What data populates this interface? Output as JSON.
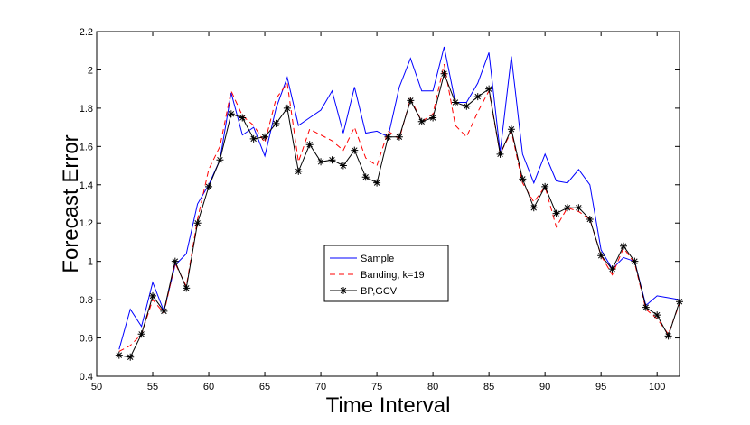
{
  "chart_data": {
    "type": "line",
    "title": "",
    "xlabel": "Time Interval",
    "ylabel": "Forecast Error",
    "xlim": [
      50,
      102
    ],
    "ylim": [
      0.4,
      2.2
    ],
    "xticks": [
      "50",
      "55",
      "60",
      "65",
      "70",
      "75",
      "80",
      "85",
      "90",
      "95",
      "100"
    ],
    "yticks": [
      "0.4",
      "0.6",
      "0.8",
      "1",
      "1.2",
      "1.4",
      "1.6",
      "1.8",
      "2",
      "2.2"
    ],
    "grid": false,
    "legend_position": "center",
    "x": [
      52,
      53,
      54,
      55,
      56,
      57,
      58,
      59,
      60,
      61,
      62,
      63,
      64,
      65,
      66,
      67,
      68,
      69,
      70,
      71,
      72,
      73,
      74,
      75,
      76,
      77,
      78,
      79,
      80,
      81,
      82,
      83,
      84,
      85,
      86,
      87,
      88,
      89,
      90,
      91,
      92,
      93,
      94,
      95,
      96,
      97,
      98,
      99,
      100,
      101,
      102
    ],
    "series": [
      {
        "name": "Sample",
        "color": "#0000ff",
        "style": "solid",
        "marker": "none",
        "values": [
          0.54,
          0.75,
          0.66,
          0.89,
          0.74,
          0.98,
          1.04,
          1.3,
          1.4,
          1.53,
          1.88,
          1.66,
          1.7,
          1.55,
          1.8,
          1.96,
          1.71,
          1.75,
          1.79,
          1.89,
          1.67,
          1.91,
          1.67,
          1.68,
          1.65,
          1.91,
          2.06,
          1.89,
          1.89,
          2.12,
          1.83,
          1.83,
          1.93,
          2.09,
          1.57,
          2.07,
          1.56,
          1.41,
          1.56,
          1.42,
          1.41,
          1.48,
          1.4,
          1.06,
          0.96,
          1.02,
          1.0,
          0.77,
          0.82,
          0.81,
          0.8
        ]
      },
      {
        "name": "Banding, k=19",
        "color": "#ff0000",
        "style": "dashed",
        "marker": "none",
        "values": [
          0.53,
          0.56,
          0.62,
          0.8,
          0.73,
          0.99,
          0.87,
          1.22,
          1.48,
          1.6,
          1.89,
          1.76,
          1.71,
          1.62,
          1.85,
          1.93,
          1.52,
          1.69,
          1.66,
          1.63,
          1.58,
          1.7,
          1.54,
          1.5,
          1.68,
          1.64,
          1.85,
          1.73,
          1.77,
          2.03,
          1.71,
          1.65,
          1.78,
          1.89,
          1.56,
          1.68,
          1.41,
          1.31,
          1.39,
          1.18,
          1.28,
          1.26,
          1.22,
          1.03,
          0.93,
          1.07,
          0.99,
          0.75,
          0.7,
          0.62,
          0.78
        ]
      },
      {
        "name": "BP,GCV",
        "color": "#000000",
        "style": "solid",
        "marker": "asterisk",
        "values": [
          0.51,
          0.5,
          0.62,
          0.82,
          0.74,
          1.0,
          0.86,
          1.2,
          1.39,
          1.53,
          1.77,
          1.75,
          1.64,
          1.65,
          1.72,
          1.8,
          1.47,
          1.61,
          1.52,
          1.53,
          1.5,
          1.58,
          1.44,
          1.41,
          1.65,
          1.65,
          1.84,
          1.73,
          1.75,
          1.98,
          1.83,
          1.81,
          1.86,
          1.9,
          1.56,
          1.69,
          1.43,
          1.28,
          1.39,
          1.25,
          1.28,
          1.28,
          1.22,
          1.03,
          0.96,
          1.08,
          1.0,
          0.76,
          0.72,
          0.61,
          0.79
        ]
      }
    ]
  }
}
